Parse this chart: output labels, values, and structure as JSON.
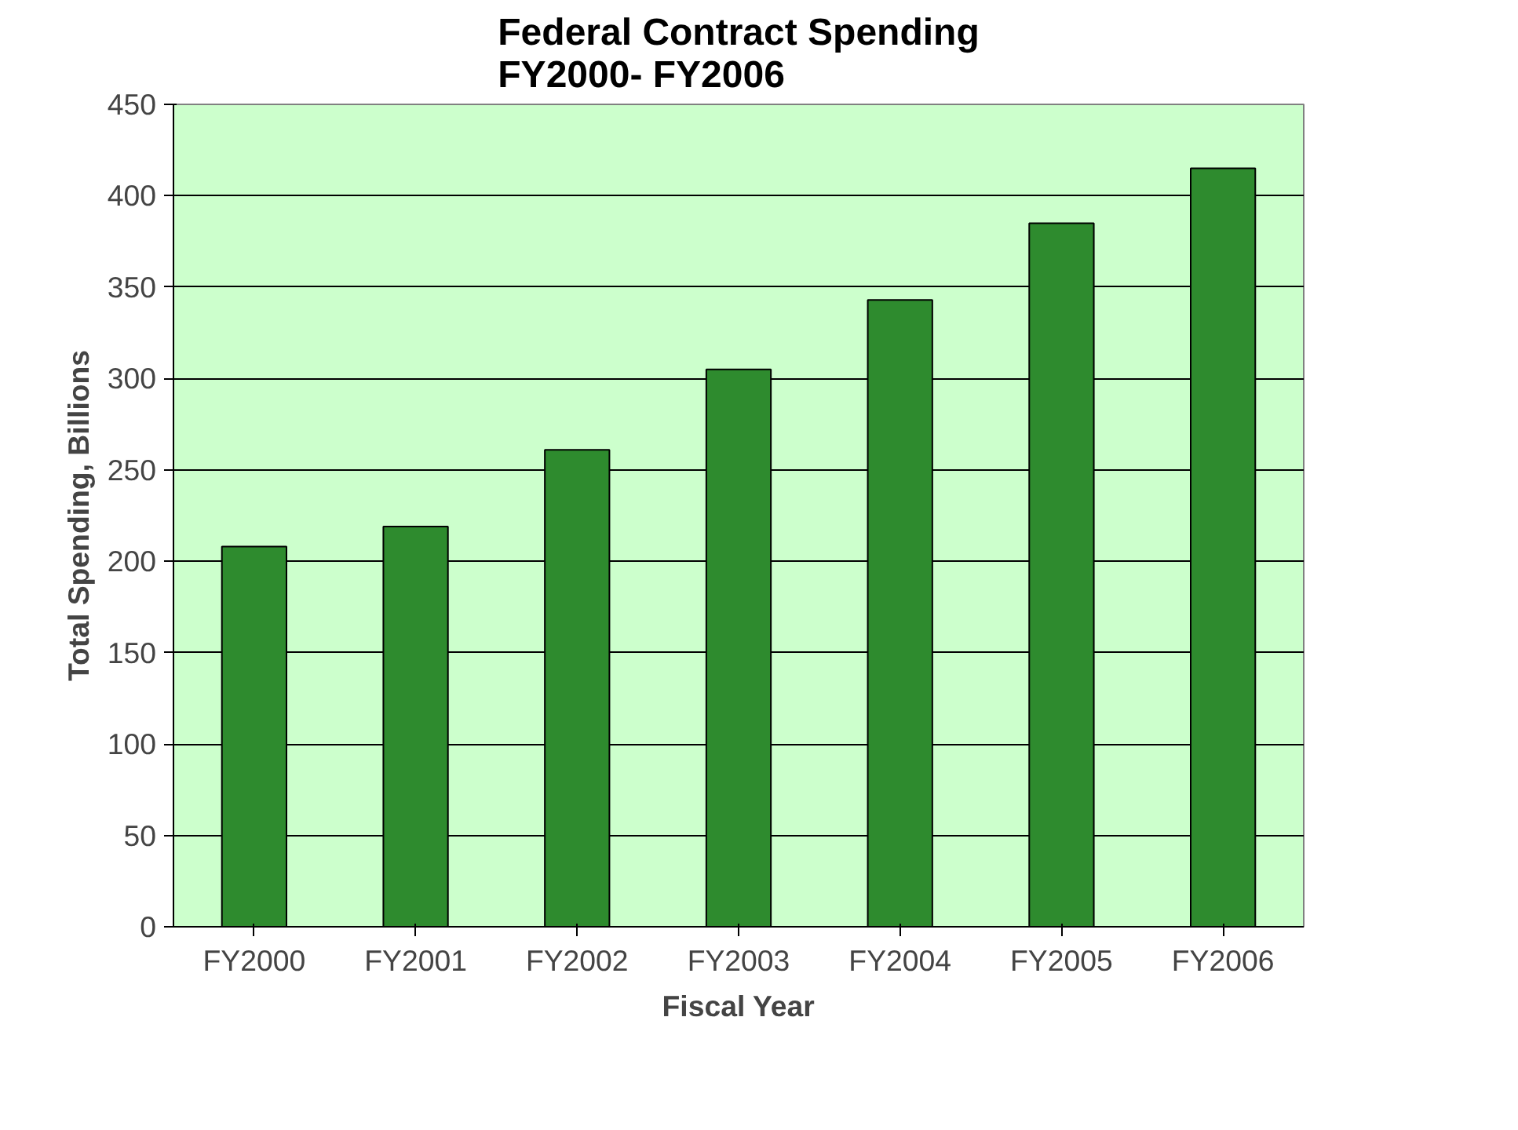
{
  "chart_data": {
    "type": "bar",
    "title": "Federal Contract Spending\nFY2000- FY2006",
    "xlabel": "Fiscal Year",
    "ylabel": "Total Spending, Billions",
    "categories": [
      "FY2000",
      "FY2001",
      "FY2002",
      "FY2003",
      "FY2004",
      "FY2005",
      "FY2006"
    ],
    "values": [
      208,
      219,
      261,
      305,
      343,
      385,
      415
    ],
    "color": "#2e8b2e",
    "ylim": [
      0,
      450
    ],
    "yticks": [
      0,
      50,
      100,
      150,
      200,
      250,
      300,
      350,
      400,
      450
    ],
    "grid": "y"
  }
}
